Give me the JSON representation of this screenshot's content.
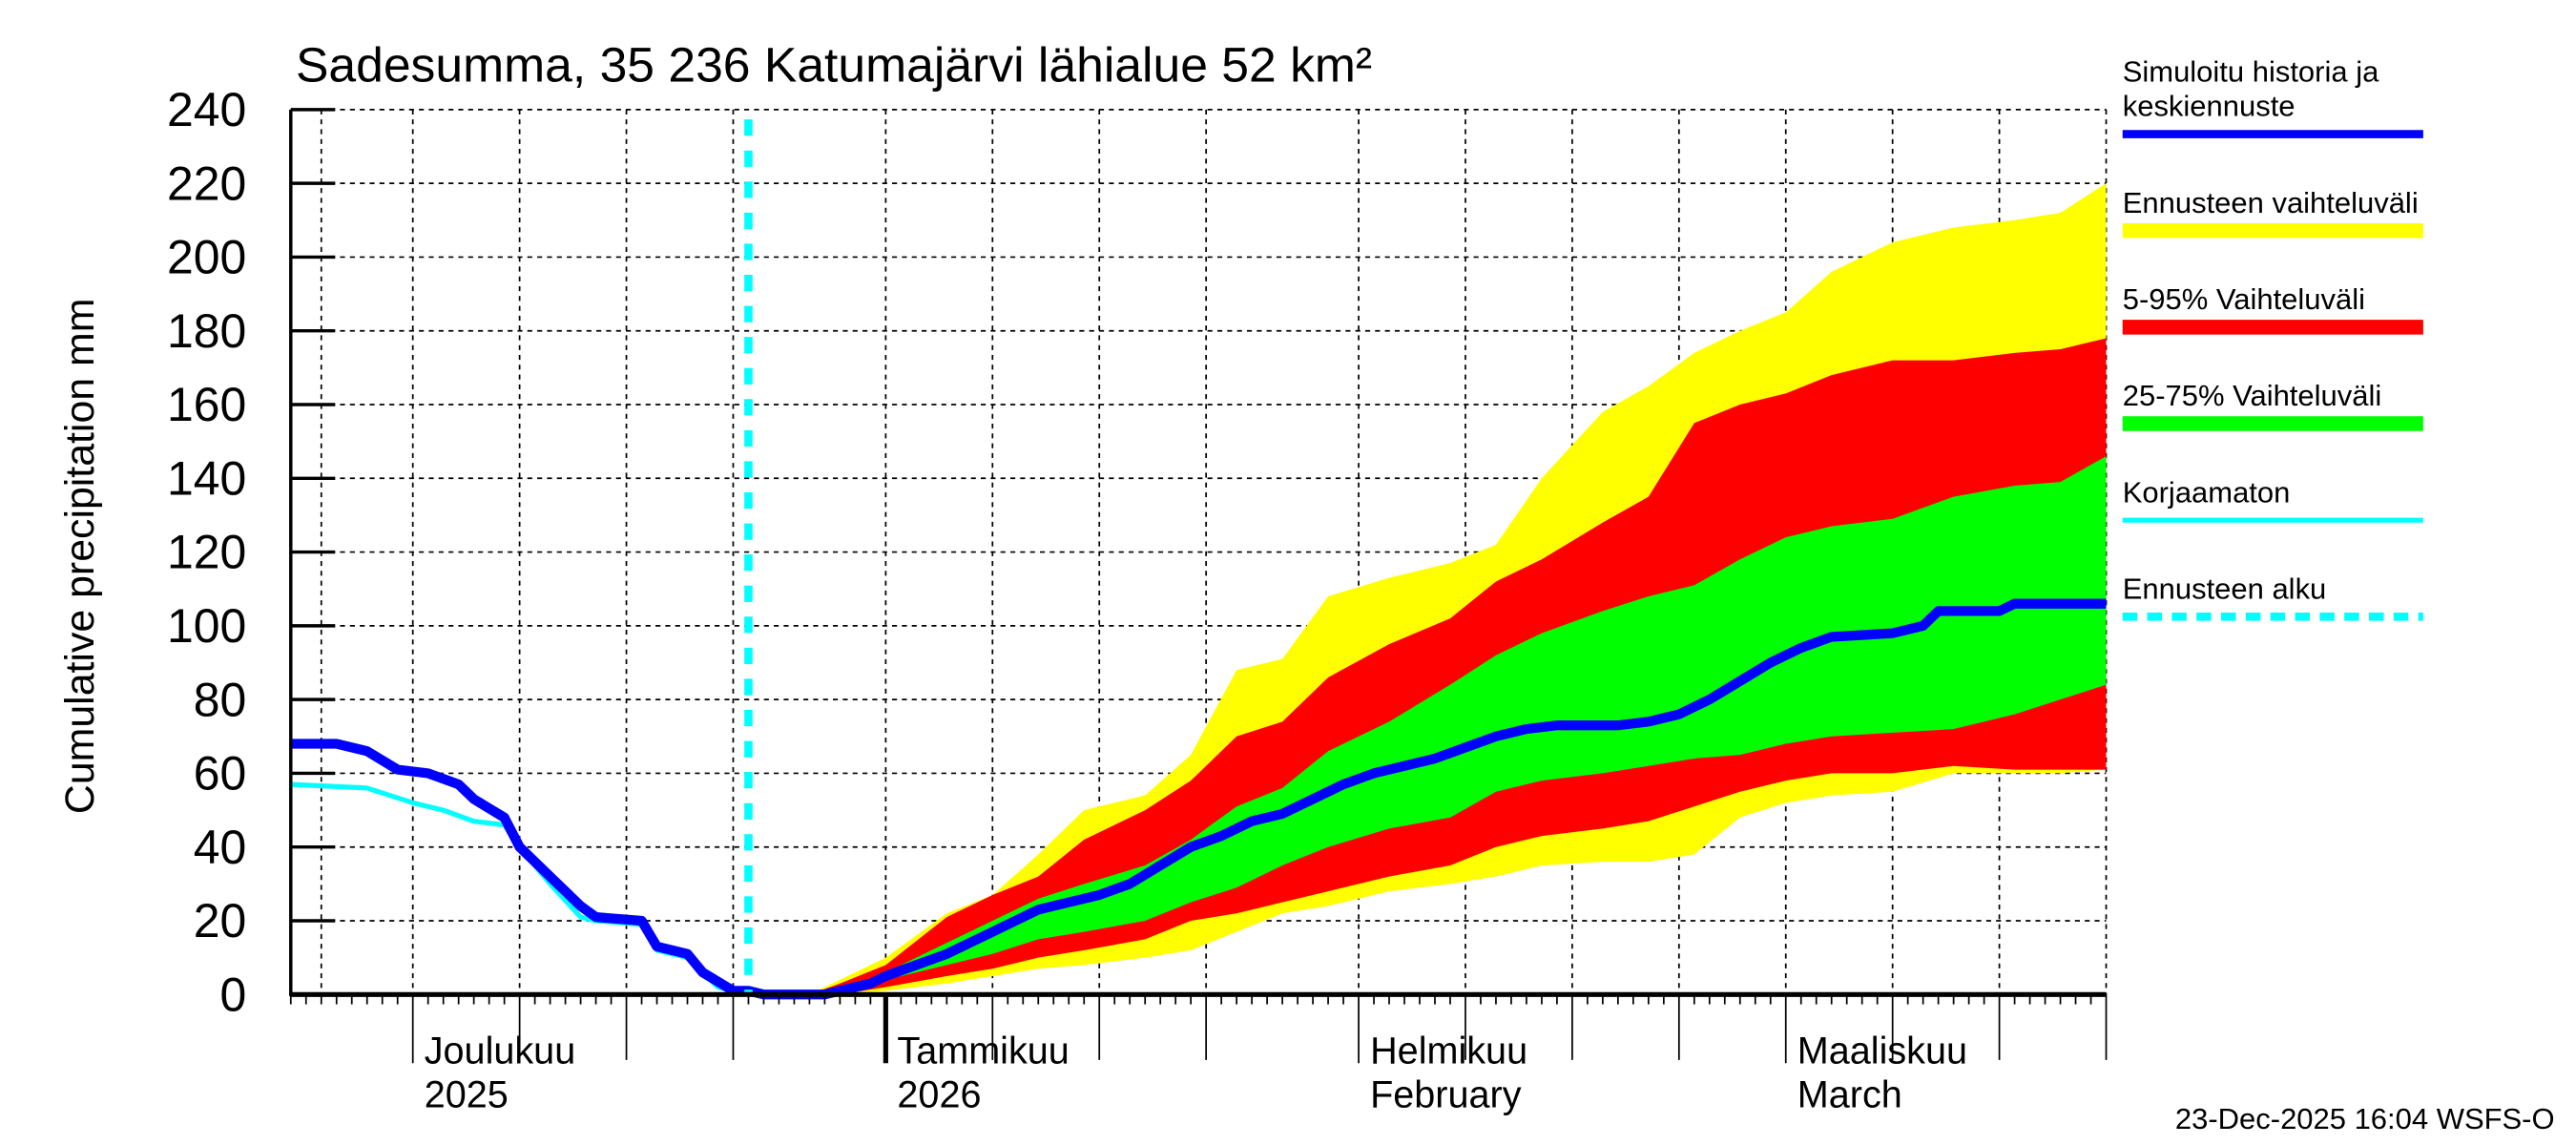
{
  "chart_data": {
    "type": "area",
    "title": "Sadesumma, 35 236 Katumajärvi lähialue 52 km²",
    "ylabel": "Cumulative precipitation    mm",
    "ylim": [
      0,
      240
    ],
    "yticks": [
      0,
      20,
      40,
      60,
      80,
      100,
      120,
      140,
      160,
      180,
      200,
      220,
      240
    ],
    "xlim": [
      "2025-11-23",
      "2026-03-22"
    ],
    "grid": true,
    "legend_position": "right",
    "x_month_labels": [
      {
        "date": "2025-12-01",
        "line1": "Joulukuu",
        "line2": "2025"
      },
      {
        "date": "2026-01-01",
        "line1": "Tammikuu",
        "line2": "2026"
      },
      {
        "date": "2026-02-01",
        "line1": "Helmikuu",
        "line2": "February"
      },
      {
        "date": "2026-03-01",
        "line1": "Maaliskuu",
        "line2": "March"
      }
    ],
    "forecast_start": "2025-12-23",
    "colors": {
      "sim": "#0000ff",
      "range": "#ffff00",
      "p5_95": "#ff0000",
      "p25_75": "#00ff00",
      "uncorrected": "#00ffff",
      "forecast_start": "#00ffff"
    },
    "legend": [
      {
        "key": "sim",
        "label": "Simuloitu historia ja keskiennuste",
        "line1": "Simuloitu historia ja",
        "line2": "keskiennuste"
      },
      {
        "key": "range",
        "label": "Ennusteen vaihteluväli"
      },
      {
        "key": "p5_95",
        "label": "5-95% Vaihteluväli"
      },
      {
        "key": "p25_75",
        "label": "25-75% Vaihteluväli"
      },
      {
        "key": "uncorrected",
        "label": "Korjaamaton"
      },
      {
        "key": "forecast_start",
        "label": "Ennusteen alku"
      }
    ],
    "bands": {
      "dates": [
        "2025-12-27",
        "2025-12-29",
        "2026-01-01",
        "2026-01-05",
        "2026-01-08",
        "2026-01-11",
        "2026-01-14",
        "2026-01-18",
        "2026-01-21",
        "2026-01-24",
        "2026-01-27",
        "2026-01-30",
        "2026-02-03",
        "2026-02-07",
        "2026-02-10",
        "2026-02-13",
        "2026-02-17",
        "2026-02-20",
        "2026-02-23",
        "2026-02-26",
        "2026-03-01",
        "2026-03-04",
        "2026-03-08",
        "2026-03-12",
        "2026-03-16",
        "2026-03-19",
        "2026-03-22"
      ],
      "range_high": [
        0,
        4,
        10,
        22,
        27,
        38,
        50,
        54,
        65,
        88,
        91,
        108,
        113,
        117,
        122,
        140,
        158,
        165,
        174,
        180,
        185,
        196,
        204,
        208,
        210,
        212,
        220
      ],
      "p95": [
        0,
        3,
        8,
        21,
        27,
        32,
        42,
        50,
        58,
        70,
        74,
        86,
        95,
        102,
        112,
        118,
        128,
        135,
        155,
        160,
        163,
        168,
        172,
        172,
        174,
        175,
        178
      ],
      "p75": [
        0,
        1,
        6,
        14,
        20,
        26,
        30,
        35,
        42,
        51,
        56,
        66,
        74,
        84,
        92,
        98,
        104,
        108,
        111,
        118,
        124,
        127,
        129,
        135,
        138,
        139,
        146
      ],
      "p25": [
        0,
        0,
        4,
        8,
        11,
        15,
        17,
        20,
        25,
        29,
        35,
        40,
        45,
        48,
        55,
        58,
        60,
        62,
        64,
        65,
        68,
        70,
        71,
        72,
        76,
        80,
        84
      ],
      "p5": [
        0,
        0,
        2,
        5,
        7,
        10,
        12,
        15,
        20,
        22,
        25,
        28,
        32,
        35,
        40,
        43,
        45,
        47,
        51,
        55,
        58,
        60,
        60,
        62,
        61,
        61,
        61
      ],
      "range_low": [
        0,
        0,
        1,
        3,
        5,
        7,
        8,
        10,
        12,
        17,
        22,
        24,
        28,
        30,
        32,
        35,
        36,
        36,
        38,
        48,
        52,
        54,
        55,
        60,
        60,
        60,
        61
      ]
    },
    "sim": {
      "dates": [
        "2025-11-23",
        "2025-11-26",
        "2025-11-28",
        "2025-11-30",
        "2025-12-02",
        "2025-12-04",
        "2025-12-05",
        "2025-12-07",
        "2025-12-08",
        "2025-12-10",
        "2025-12-11",
        "2025-12-12",
        "2025-12-13",
        "2025-12-16",
        "2025-12-17",
        "2025-12-19",
        "2025-12-20",
        "2025-12-22",
        "2025-12-23",
        "2025-12-24",
        "2025-12-28",
        "2025-12-31",
        "2026-01-01",
        "2026-01-03",
        "2026-01-05",
        "2026-01-07",
        "2026-01-09",
        "2026-01-11",
        "2026-01-13",
        "2026-01-15",
        "2026-01-17",
        "2026-01-19",
        "2026-01-21",
        "2026-01-23",
        "2026-01-25",
        "2026-01-27",
        "2026-01-29",
        "2026-01-31",
        "2026-02-02",
        "2026-02-04",
        "2026-02-06",
        "2026-02-08",
        "2026-02-10",
        "2026-02-12",
        "2026-02-14",
        "2026-02-18",
        "2026-02-20",
        "2026-02-22",
        "2026-02-24",
        "2026-02-26",
        "2026-02-28",
        "2026-03-02",
        "2026-03-04",
        "2026-03-08",
        "2026-03-10",
        "2026-03-11",
        "2026-03-15",
        "2026-03-16",
        "2026-03-22"
      ],
      "values": [
        68,
        68,
        66,
        61,
        60,
        57,
        53,
        48,
        40,
        32,
        28,
        24,
        21,
        20,
        13,
        11,
        6,
        1,
        1,
        0,
        0,
        3,
        5,
        8,
        11,
        15,
        19,
        23,
        25,
        27,
        30,
        35,
        40,
        43,
        47,
        49,
        53,
        57,
        60,
        62,
        64,
        67,
        70,
        72,
        73,
        73,
        74,
        76,
        80,
        85,
        90,
        94,
        97,
        98,
        100,
        104,
        104,
        106,
        106
      ]
    },
    "uncorrected": {
      "dates": [
        "2025-11-23",
        "2025-11-28",
        "2025-12-01",
        "2025-12-03",
        "2025-12-05",
        "2025-12-07",
        "2025-12-08",
        "2025-12-10",
        "2025-12-12",
        "2025-12-13",
        "2025-12-16",
        "2025-12-17",
        "2025-12-19",
        "2025-12-20",
        "2025-12-21",
        "2025-12-22"
      ],
      "values": [
        57,
        56,
        52,
        50,
        47,
        46,
        40,
        30,
        21,
        20,
        19,
        12,
        10,
        6,
        2,
        1
      ]
    }
  },
  "footer": {
    "timestamp": "23-Dec-2025 16:04 WSFS-O"
  }
}
